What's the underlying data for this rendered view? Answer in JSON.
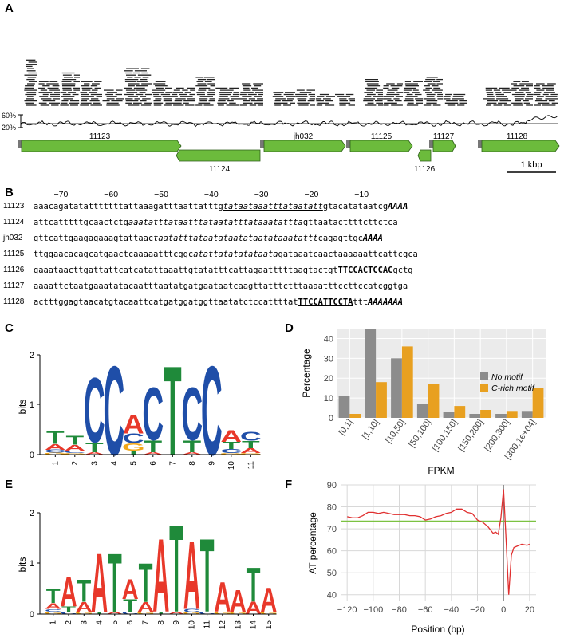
{
  "panels": {
    "A": "A",
    "B": "B",
    "C": "C",
    "D": "D",
    "E": "E",
    "F": "F"
  },
  "panelA": {
    "gc_ticks": [
      "60%",
      "20%"
    ],
    "genes": [
      "11123",
      "11124",
      "jh032",
      "11125",
      "11126",
      "11127",
      "11128"
    ],
    "scale_label": "1 kbp"
  },
  "panelB": {
    "positions": [
      "−70",
      "−60",
      "−50",
      "−40",
      "−30",
      "−20",
      "−10"
    ],
    "rows": [
      {
        "name": "11123",
        "segments": [
          {
            "t": "aaacagatatatttttttattaaagatttaattatttg",
            "s": "plain"
          },
          {
            "t": "tataataaatttataatatt",
            "s": "tata"
          },
          {
            "t": "gtacatataatcg",
            "s": "plain"
          },
          {
            "t": "AAAA",
            "s": "polya"
          }
        ]
      },
      {
        "name": "11124",
        "segments": [
          {
            "t": "attcatttttgcaactctg",
            "s": "plain"
          },
          {
            "t": "aaatatttataatttataatatttataaatattta",
            "s": "tata"
          },
          {
            "t": "gttaatacttttcttctca",
            "s": "plain"
          }
        ]
      },
      {
        "name": "jh032",
        "segments": [
          {
            "t": "gttcattgaagagaaagtattaac",
            "s": "plain"
          },
          {
            "t": "taatatttataatataatataatataaatattt",
            "s": "tata"
          },
          {
            "t": "cagagttgc",
            "s": "plain"
          },
          {
            "t": "AAAA",
            "s": "polya"
          }
        ]
      },
      {
        "name": "11125",
        "segments": [
          {
            "t": "ttggaacacagcatgaactcaaaaatttcggc",
            "s": "plain"
          },
          {
            "t": "atattatatatataata",
            "s": "tata"
          },
          {
            "t": "gataaatcaactaaaaaattcattcgca",
            "s": "plain"
          }
        ]
      },
      {
        "name": "11126",
        "segments": [
          {
            "t": "gaaataacttgattattcatcatattaaattgtatatttcattagaatttttaagtactgt",
            "s": "plain"
          },
          {
            "t": "TTCCACTCCAC",
            "s": "crich"
          },
          {
            "t": "gctg",
            "s": "plain"
          }
        ]
      },
      {
        "name": "11127",
        "segments": [
          {
            "t": "aaaattctaatgaaatatacaatttaatatgatgaataatcaagttatttctttaaaatttccttccatcggtga",
            "s": "plain"
          }
        ]
      },
      {
        "name": "11128",
        "segments": [
          {
            "t": "actttggagtaacatgtacaattcatgatggatggttaatatctccattttat",
            "s": "plain"
          },
          {
            "t": "TTCCATTCCTA",
            "s": "crich"
          },
          {
            "t": "ttt",
            "s": "plain"
          },
          {
            "t": "AAAAAAA",
            "s": "polya"
          }
        ]
      }
    ]
  },
  "panelC": {
    "ylabel": "bits",
    "yticks": [
      "0",
      "1",
      "2"
    ],
    "positions": [
      "1",
      "2",
      "3",
      "4",
      "5",
      "6",
      "7",
      "8",
      "9",
      "10",
      "11"
    ]
  },
  "panelE": {
    "ylabel": "bits",
    "yticks": [
      "0",
      "1",
      "2"
    ],
    "positions": [
      "1",
      "2",
      "3",
      "4",
      "5",
      "6",
      "7",
      "8",
      "9",
      "10",
      "11",
      "12",
      "13",
      "14",
      "15"
    ]
  },
  "chart_data": [
    {
      "panel": "D",
      "type": "bar",
      "xlabel": "FPKM",
      "ylabel": "Percentage",
      "categories": [
        "[0,1]",
        "[1,10]",
        "[10,50]",
        "[50,100]",
        "[100,150]",
        "[150,200]",
        "[200,300]",
        "[300,1e+04]"
      ],
      "series": [
        {
          "name": "No motif",
          "color": "#8c8c8c",
          "values": [
            11,
            45,
            30,
            7,
            3,
            2,
            2,
            3.5
          ]
        },
        {
          "name": "C-rich motif",
          "color": "#e8a020",
          "values": [
            2,
            18,
            36,
            17,
            6,
            4,
            3.5,
            15
          ]
        }
      ],
      "ylim": [
        0,
        45
      ],
      "yticks": [
        "0",
        "10",
        "20",
        "30",
        "40"
      ],
      "legend": "right"
    },
    {
      "panel": "F",
      "type": "line",
      "xlabel": "Position (bp)",
      "ylabel": "AT percentage",
      "xlim": [
        -125,
        25
      ],
      "ylim": [
        37,
        90
      ],
      "xticks": [
        "−120",
        "−100",
        "−80",
        "−60",
        "−40",
        "−20",
        "0",
        "20"
      ],
      "yticks": [
        "40",
        "50",
        "60",
        "70",
        "80",
        "90"
      ],
      "baseline": 73.5,
      "baseline_color": "#7cc242",
      "series": [
        {
          "color": "#e03030",
          "x": [
            -120,
            -116,
            -112,
            -108,
            -104,
            -100,
            -96,
            -92,
            -88,
            -84,
            -80,
            -76,
            -72,
            -68,
            -64,
            -60,
            -56,
            -52,
            -48,
            -44,
            -40,
            -36,
            -32,
            -28,
            -24,
            -20,
            -16,
            -12,
            -8,
            -6,
            -4,
            -2,
            0,
            2,
            4,
            6,
            8,
            10,
            14,
            18,
            20
          ],
          "y": [
            75.5,
            75,
            75,
            76,
            77.5,
            77.5,
            77,
            77.5,
            77,
            76.5,
            76.5,
            76.5,
            76,
            76,
            75.5,
            74,
            74.5,
            75.5,
            76,
            77,
            77.5,
            79,
            79,
            77.5,
            77,
            74,
            73,
            71,
            68,
            68.5,
            67.5,
            75,
            88,
            65,
            40,
            58,
            61.5,
            62,
            63,
            62.5,
            63
          ]
        }
      ]
    }
  ]
}
